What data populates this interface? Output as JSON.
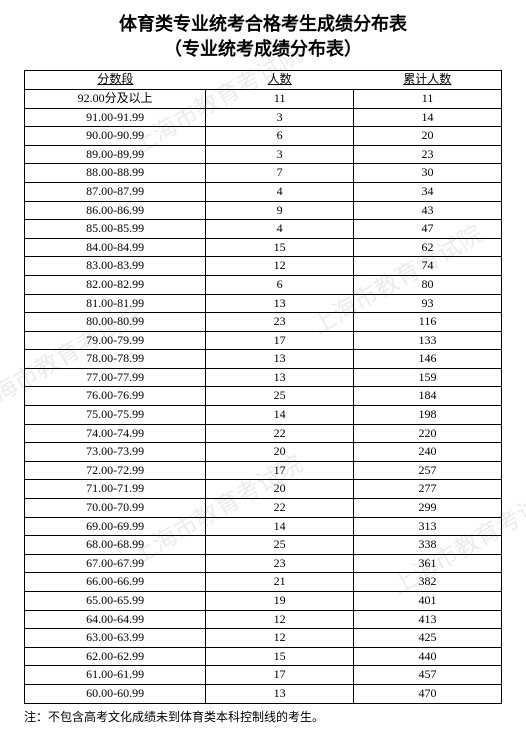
{
  "title_line1": "体育类专业统考合格考生成绩分布表",
  "title_line2": "（专业统考成绩分布表）",
  "watermark_text": "上海市教育考试院",
  "columns": [
    "分数段",
    "人数",
    "累计人数"
  ],
  "rows": [
    [
      "92.00分及以上",
      "11",
      "11"
    ],
    [
      "91.00-91.99",
      "3",
      "14"
    ],
    [
      "90.00-90.99",
      "6",
      "20"
    ],
    [
      "89.00-89.99",
      "3",
      "23"
    ],
    [
      "88.00-88.99",
      "7",
      "30"
    ],
    [
      "87.00-87.99",
      "4",
      "34"
    ],
    [
      "86.00-86.99",
      "9",
      "43"
    ],
    [
      "85.00-85.99",
      "4",
      "47"
    ],
    [
      "84.00-84.99",
      "15",
      "62"
    ],
    [
      "83.00-83.99",
      "12",
      "74"
    ],
    [
      "82.00-82.99",
      "6",
      "80"
    ],
    [
      "81.00-81.99",
      "13",
      "93"
    ],
    [
      "80.00-80.99",
      "23",
      "116"
    ],
    [
      "79.00-79.99",
      "17",
      "133"
    ],
    [
      "78.00-78.99",
      "13",
      "146"
    ],
    [
      "77.00-77.99",
      "13",
      "159"
    ],
    [
      "76.00-76.99",
      "25",
      "184"
    ],
    [
      "75.00-75.99",
      "14",
      "198"
    ],
    [
      "74.00-74.99",
      "22",
      "220"
    ],
    [
      "73.00-73.99",
      "20",
      "240"
    ],
    [
      "72.00-72.99",
      "17",
      "257"
    ],
    [
      "71.00-71.99",
      "20",
      "277"
    ],
    [
      "70.00-70.99",
      "22",
      "299"
    ],
    [
      "69.00-69.99",
      "14",
      "313"
    ],
    [
      "68.00-68.99",
      "25",
      "338"
    ],
    [
      "67.00-67.99",
      "23",
      "361"
    ],
    [
      "66.00-66.99",
      "21",
      "382"
    ],
    [
      "65.00-65.99",
      "19",
      "401"
    ],
    [
      "64.00-64.99",
      "12",
      "413"
    ],
    [
      "63.00-63.99",
      "12",
      "425"
    ],
    [
      "62.00-62.99",
      "15",
      "440"
    ],
    [
      "61.00-61.99",
      "17",
      "457"
    ],
    [
      "60.00-60.99",
      "13",
      "470"
    ]
  ],
  "footnote": "注：不包含高考文化成绩未到体育类本科控制线的考生。"
}
